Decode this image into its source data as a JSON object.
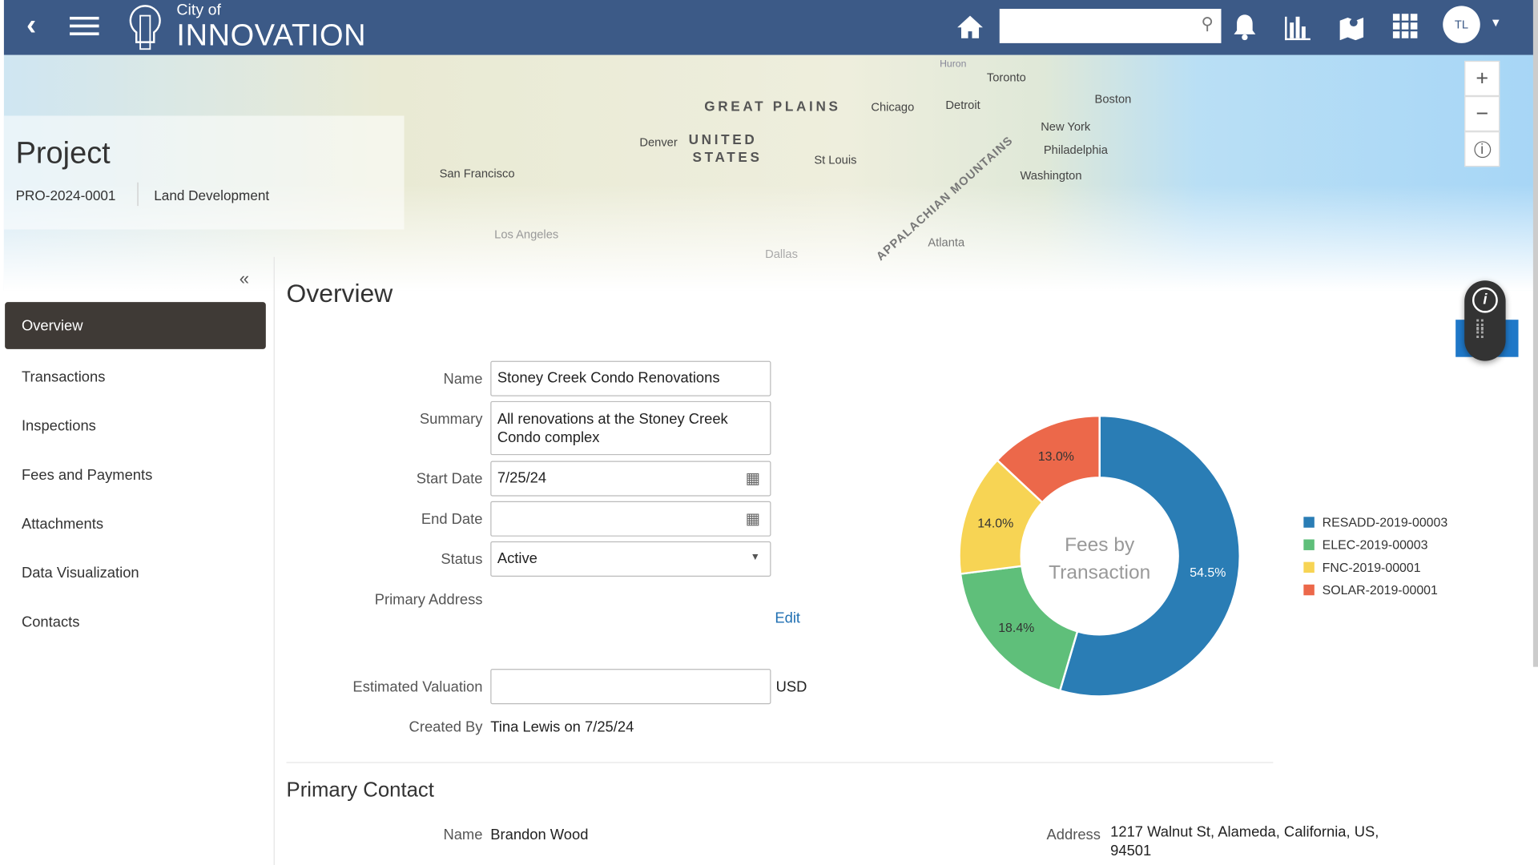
{
  "header": {
    "logo_small": "City of",
    "logo_big": "INNOVATION",
    "search_placeholder": "",
    "avatar_initials": "TL"
  },
  "map": {
    "cities": [
      "Toronto",
      "Boston",
      "Chicago",
      "Detroit",
      "New York",
      "Philadelphia",
      "Washington",
      "Denver",
      "St Louis",
      "San Francisco",
      "Los Angeles",
      "Atlanta",
      "Dallas",
      "Huron"
    ],
    "regions": [
      "GREAT PLAINS",
      "UNITED",
      "STATES",
      "APPALACHIAN MOUNTAINS"
    ],
    "zoom_in": "+",
    "zoom_out": "−",
    "info": "i"
  },
  "project": {
    "title": "Project",
    "id": "PRO-2024-0001",
    "type": "Land Development"
  },
  "sidebar": {
    "items": [
      {
        "label": "Overview"
      },
      {
        "label": "Transactions"
      },
      {
        "label": "Inspections"
      },
      {
        "label": "Fees and Payments"
      },
      {
        "label": "Attachments"
      },
      {
        "label": "Data Visualization"
      },
      {
        "label": "Contacts"
      }
    ],
    "active": "Overview"
  },
  "overview": {
    "title": "Overview",
    "name_label": "Name",
    "name_value": "Stoney Creek Condo Renovations",
    "summary_label": "Summary",
    "summary_value": "All renovations at the Stoney Creek Condo complex",
    "start_label": "Start Date",
    "start_value": "7/25/24",
    "end_label": "End Date",
    "end_value": "",
    "status_label": "Status",
    "status_value": "Active",
    "address_label": "Primary Address",
    "edit_label": "Edit",
    "valuation_label": "Estimated Valuation",
    "valuation_value": "",
    "currency": "USD",
    "created_label": "Created By",
    "created_value": "Tina Lewis on 7/25/24"
  },
  "contact": {
    "title": "Primary Contact",
    "name_label": "Name",
    "name_value": "Brandon Wood",
    "address_label": "Address",
    "address_line1": "1217 Walnut St, Alameda, California, US,",
    "address_line2": "94501"
  },
  "chart_data": {
    "type": "pie",
    "donut": true,
    "center_label": [
      "Fees by",
      "Transaction"
    ],
    "legend_position": "right",
    "series": [
      {
        "name": "RESADD-2019-00003",
        "value": 54.5,
        "label": "54.5%",
        "color": "#2a7db5"
      },
      {
        "name": "ELEC-2019-00003",
        "value": 18.4,
        "label": "18.4%",
        "color": "#5fbf7a"
      },
      {
        "name": "FNC-2019-00001",
        "value": 14.0,
        "label": "14.0%",
        "color": "#f7d454"
      },
      {
        "name": "SOLAR-2019-00001",
        "value": 13.0,
        "label": "13.0%",
        "color": "#ec684a"
      }
    ]
  }
}
